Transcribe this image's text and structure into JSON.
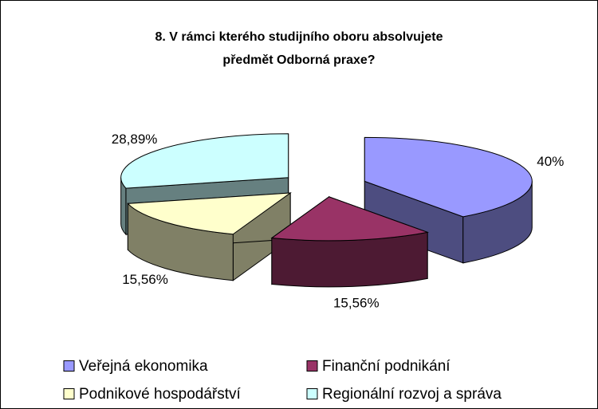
{
  "chart_data": {
    "type": "pie3d",
    "title": [
      "8. V rámci kterého studijního oboru absolvujete",
      "předmět Odborná praxe?"
    ],
    "categories": [
      "Veřejná ekonomika",
      "Finanční podnikání",
      "Podnikové hospodářství",
      "Regionální rozvoj a správa"
    ],
    "values": [
      40,
      15.56,
      15.56,
      28.89
    ],
    "value_labels": [
      "40%",
      "15,56%",
      "15,56%",
      "28,89%"
    ],
    "colors": [
      "#9999ff",
      "#993366",
      "#ffffcc",
      "#ccffff"
    ],
    "legend": "bottom"
  }
}
